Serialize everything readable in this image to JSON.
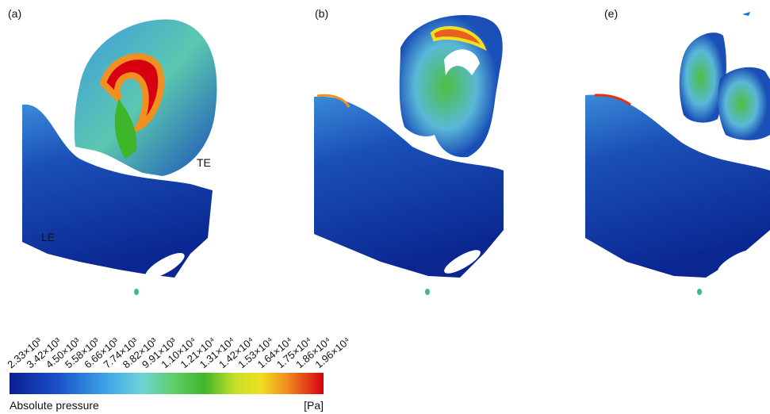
{
  "panels": [
    {
      "label": "(a)"
    },
    {
      "label": "(b)"
    },
    {
      "label": "(e)"
    }
  ],
  "annotations": {
    "te": "TE",
    "le": "LE"
  },
  "colorbar": {
    "title": "Absolute pressure",
    "unit": "[Pa]",
    "tick_labels": [
      "2.33×10³",
      "3.42×10³",
      "4.50×10³",
      "5.58×10³",
      "6.66×10³",
      "7.74×10³",
      "8.82×10³",
      "9.91×10³",
      "1.10×10⁴",
      "1.21×10⁴",
      "1.31×10⁴",
      "1.42×10⁴",
      "1.53×10⁴",
      "1.64×10⁴",
      "1.75×10⁴",
      "1.86×10⁴",
      "1.96×10⁴"
    ]
  }
}
